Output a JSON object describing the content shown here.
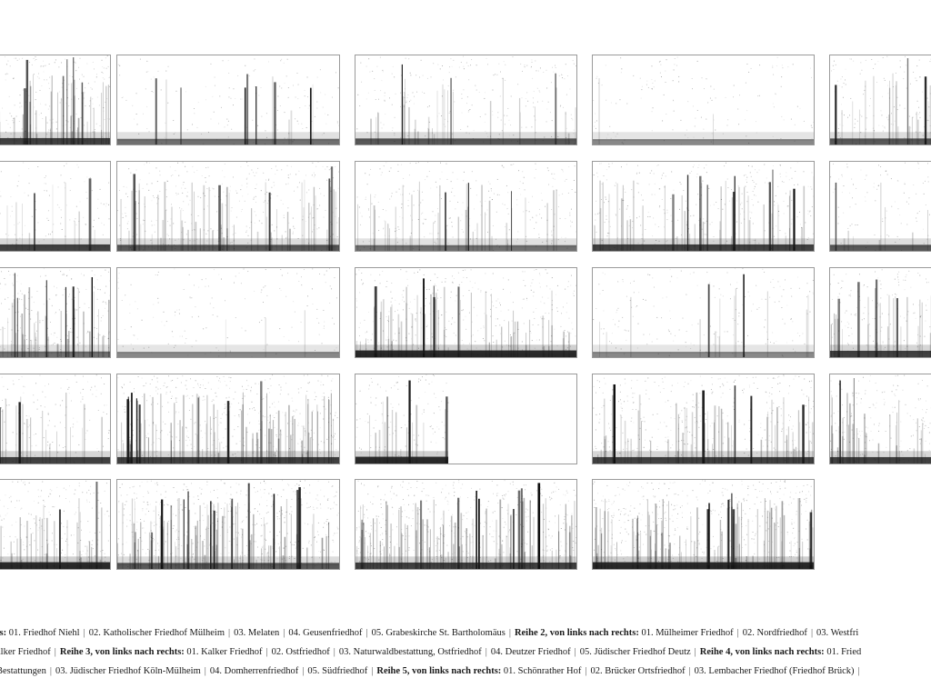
{
  "captions": [
    {
      "segments": [
        {
          "bold": "ts:",
          "text": "01. Friedhof Niehl"
        },
        {
          "text": "02. Katholischer Friedhof Mülheim"
        },
        {
          "text": "03. Melaten"
        },
        {
          "text": "04. Geusenfriedhof"
        },
        {
          "text": "05. Grabeskirche St. Bartholomäus"
        },
        {
          "bold": "Reihe 2, von links nach rechts:",
          "text": "01. Mülheimer Friedhof"
        },
        {
          "text": "02. Nordfriedhof"
        },
        {
          "text": "03. Westfri"
        }
      ]
    },
    {
      "segments": [
        {
          "text": "alker Friedhof"
        },
        {
          "bold": "Reihe 3, von links nach rechts:",
          "text": "01. Kalker Friedhof"
        },
        {
          "text": "02. Ostfriedhof"
        },
        {
          "text": "03. Naturwaldbestattung, Ostfriedhof"
        },
        {
          "text": "04. Deutzer Friedhof"
        },
        {
          "text": "05. Jüdischer Friedhof Deutz"
        },
        {
          "bold": "Reihe 4, von links nach rechts:",
          "text": "01. Fried"
        }
      ]
    },
    {
      "segments": [
        {
          "text": "Bestattungen"
        },
        {
          "text": "03. Jüdischer Friedhof Köln-Mülheim"
        },
        {
          "text": "04. Domherrenfriedhof"
        },
        {
          "text": "05. Südfriedhof"
        },
        {
          "bold": "Reihe 5, von links nach rechts:",
          "text": "01. Schönrather Hof"
        },
        {
          "text": "02. Brücker Ortsfriedhof"
        },
        {
          "text": "03. Lembacher Friedhof (Friedhof Brück)"
        },
        {
          "text": ""
        }
      ]
    }
  ]
}
